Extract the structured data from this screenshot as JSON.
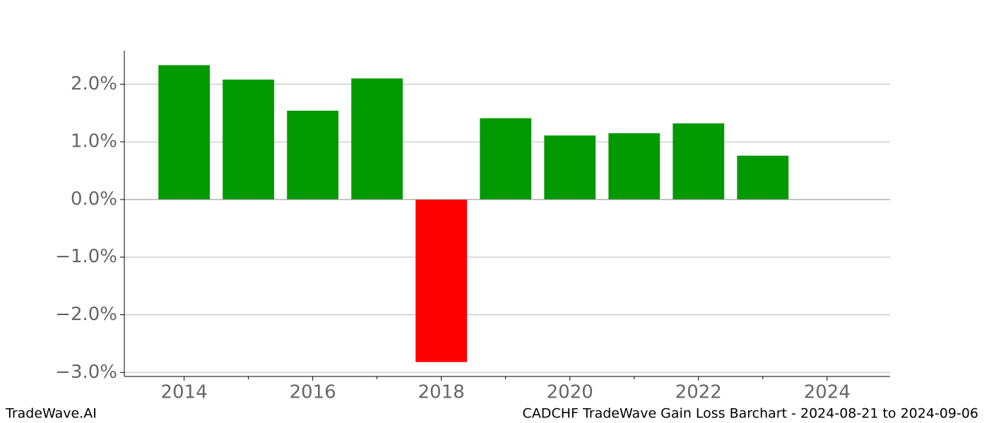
{
  "chart_data": {
    "type": "bar",
    "title": "CADCHF TradeWave Gain Loss Barchart - 2024-08-21 to 2024-09-06",
    "watermark": "TradeWave.AI",
    "x": [
      2014,
      2015,
      2016,
      2017,
      2018,
      2019,
      2020,
      2021,
      2022,
      2023
    ],
    "values": [
      2.33,
      2.08,
      1.54,
      2.1,
      -2.82,
      1.41,
      1.11,
      1.15,
      1.32,
      0.76
    ],
    "colors": [
      "#009900",
      "#009900",
      "#009900",
      "#009900",
      "#ff0000",
      "#009900",
      "#009900",
      "#009900",
      "#009900",
      "#009900"
    ],
    "bar_width": 0.8,
    "xlim": [
      2013.07,
      2024.98
    ],
    "xticks": [
      2014,
      2016,
      2018,
      2020,
      2022,
      2024
    ],
    "xticks_minor": [
      2015,
      2017,
      2019,
      2021,
      2023
    ],
    "ylim": [
      -3.07,
      2.58
    ],
    "yticks": [
      {
        "value": -3,
        "label": "−3.0%"
      },
      {
        "value": -2,
        "label": "−2.0%"
      },
      {
        "value": -1,
        "label": "−1.0%"
      },
      {
        "value": 0,
        "label": "0.0%"
      },
      {
        "value": 1,
        "label": "1.0%"
      },
      {
        "value": 2,
        "label": "2.0%"
      }
    ],
    "grid": true
  }
}
